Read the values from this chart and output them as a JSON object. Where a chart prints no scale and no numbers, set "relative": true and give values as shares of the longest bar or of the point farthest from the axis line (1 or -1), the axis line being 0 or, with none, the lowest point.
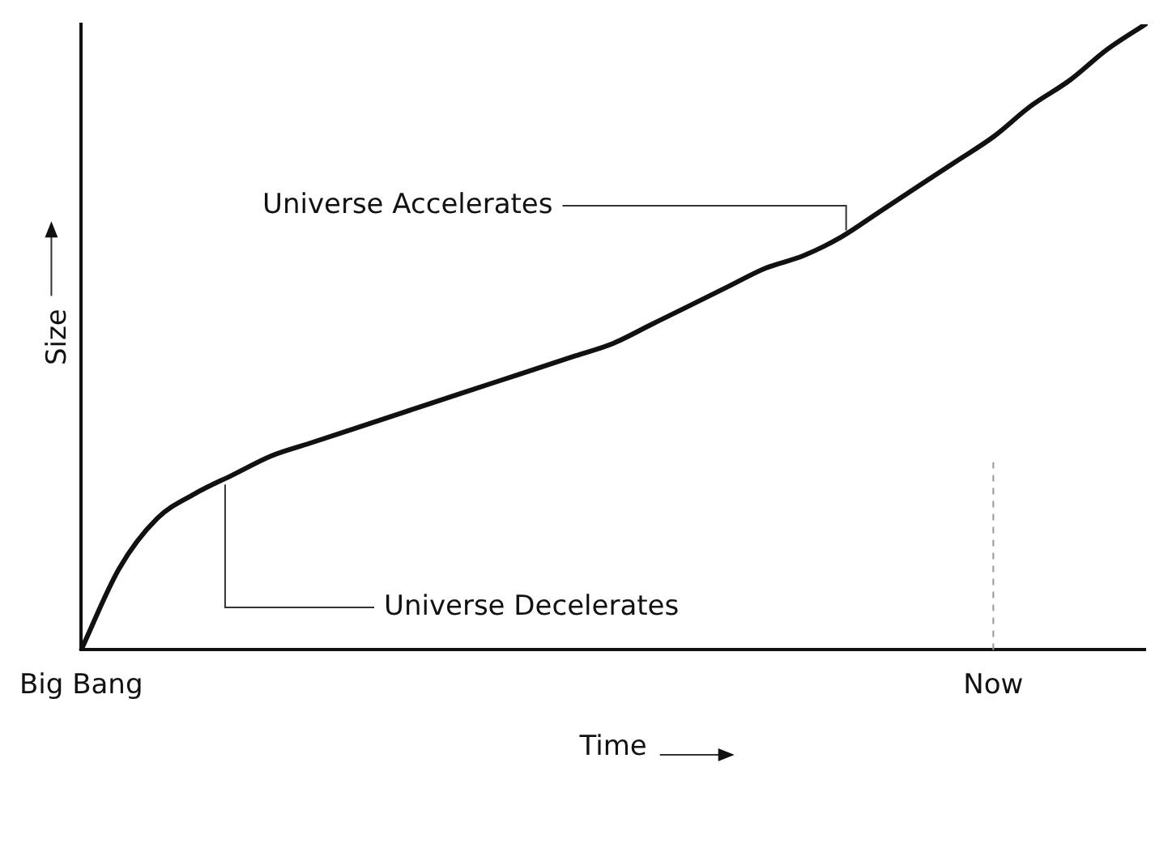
{
  "chart_data": {
    "type": "line",
    "relative": true,
    "xlabel": "Time",
    "ylabel": "Size",
    "color": "#111111",
    "legend": false,
    "grid": false,
    "marker": "none",
    "categories": [
      "Big Bang",
      null,
      null,
      null,
      null,
      null,
      null,
      null,
      null,
      null,
      null,
      null,
      null,
      null,
      null,
      null,
      null,
      null,
      null,
      null,
      null,
      null,
      null,
      null,
      "Now",
      null,
      null,
      null,
      null
    ],
    "values": [
      0,
      0.13,
      0.21,
      0.25,
      0.28,
      0.31,
      0.33,
      0.35,
      0.37,
      0.39,
      0.41,
      0.43,
      0.45,
      0.47,
      0.49,
      0.52,
      0.55,
      0.58,
      0.61,
      0.63,
      0.66,
      0.7,
      0.74,
      0.78,
      0.82,
      0.87,
      0.91,
      0.96,
      1
    ],
    "ref_lines": [
      {
        "axis": "x",
        "value": "Now",
        "line_style": "dashed",
        "color": "#999999"
      }
    ],
    "annotations": [
      "Universe Accelerates",
      "Universe Decelerates"
    ]
  }
}
